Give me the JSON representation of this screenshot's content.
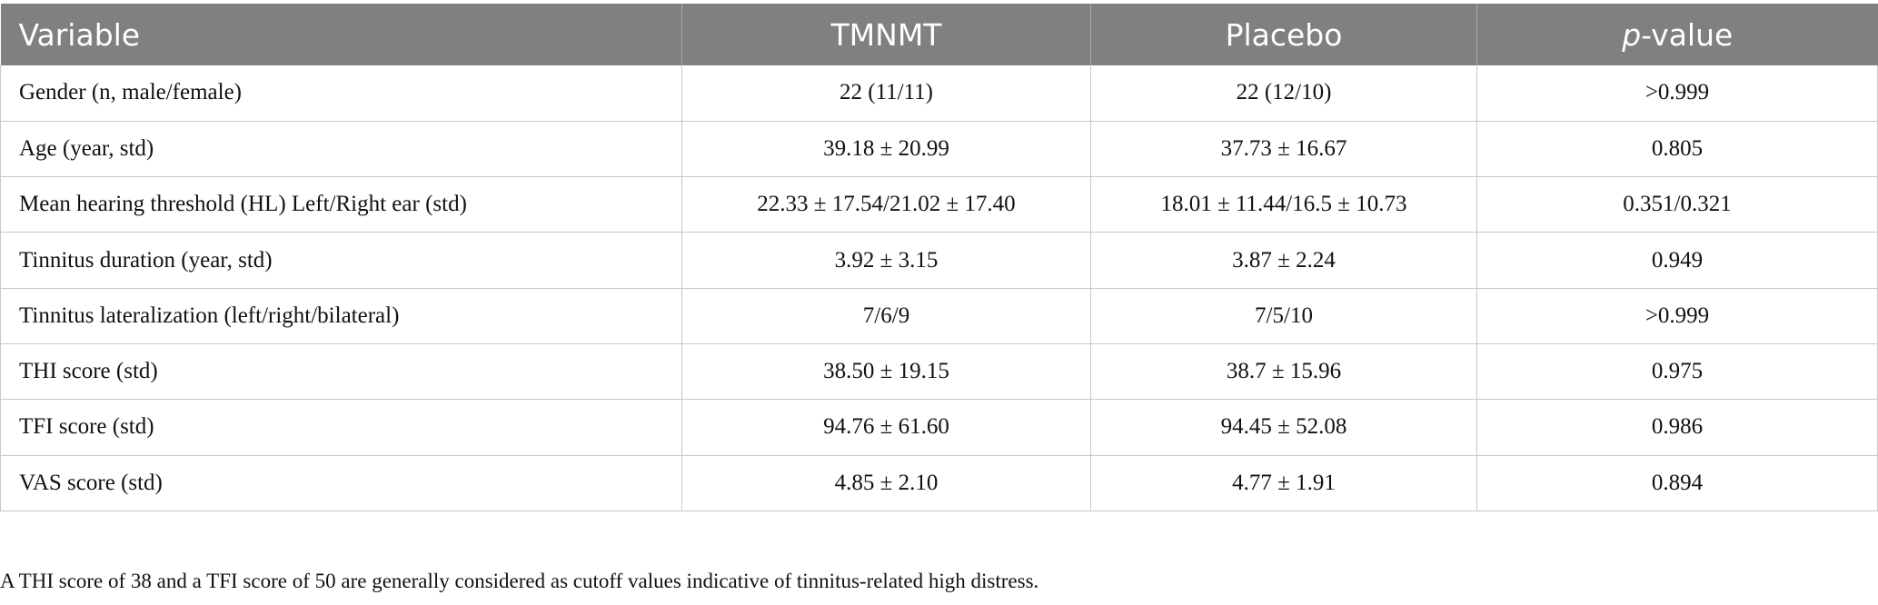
{
  "table": {
    "headers": {
      "variable": "Variable",
      "tmnmt": "TMNMT",
      "placebo": "Placebo",
      "pvalue_italic": "p",
      "pvalue_rest": "-value"
    },
    "rows": [
      {
        "variable": "Gender (n, male/female)",
        "tmnmt": "22 (11/11)",
        "placebo": "22 (12/10)",
        "pvalue": ">0.999"
      },
      {
        "variable": "Age (year, std)",
        "tmnmt": "39.18 ± 20.99",
        "placebo": "37.73 ± 16.67",
        "pvalue": "0.805"
      },
      {
        "variable": "Mean hearing threshold (HL) Left/Right ear (std)",
        "tmnmt": "22.33 ± 17.54/21.02 ± 17.40",
        "placebo": "18.01 ± 11.44/16.5 ± 10.73",
        "pvalue": "0.351/0.321"
      },
      {
        "variable": "Tinnitus duration (year, std)",
        "tmnmt": "3.92 ± 3.15",
        "placebo": "3.87 ± 2.24",
        "pvalue": "0.949"
      },
      {
        "variable": "Tinnitus lateralization (left/right/bilateral)",
        "tmnmt": "7/6/9",
        "placebo": "7/5/10",
        "pvalue": ">0.999"
      },
      {
        "variable": "THI score (std)",
        "tmnmt": "38.50 ± 19.15",
        "placebo": "38.7 ± 15.96",
        "pvalue": "0.975"
      },
      {
        "variable": "TFI score (std)",
        "tmnmt": "94.76 ± 61.60",
        "placebo": "94.45 ± 52.08",
        "pvalue": "0.986"
      },
      {
        "variable": "VAS score (std)",
        "tmnmt": "4.85 ± 2.10",
        "placebo": "4.77 ± 1.91",
        "pvalue": "0.894"
      }
    ]
  },
  "footnote": "A THI score of 38 and a TFI score of 50 are generally considered as cutoff values indicative of tinnitus-related high distress.",
  "colors": {
    "header_bg": "#808080",
    "header_text": "#ffffff",
    "grid": "#c8c8c8"
  }
}
